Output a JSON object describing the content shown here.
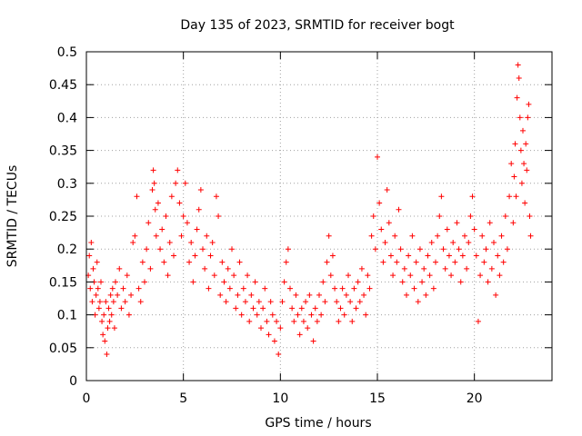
{
  "chart_data": {
    "type": "scatter",
    "title": "Day 135 of 2023, SRMTID for receiver bogt",
    "xlabel": "GPS time / hours",
    "ylabel": "SRMTID / TECUs",
    "xlim": [
      0,
      24
    ],
    "ylim": [
      0,
      0.5
    ],
    "xticks": [
      0,
      5,
      10,
      15,
      20
    ],
    "yticks": [
      0,
      0.05,
      0.1,
      0.15,
      0.2,
      0.25,
      0.3,
      0.35,
      0.4,
      0.45,
      0.5
    ],
    "grid": true,
    "marker": "+",
    "series_color": "#ff0000",
    "series": [
      {
        "name": "SRMTID",
        "points": [
          [
            0.1,
            0.16
          ],
          [
            0.15,
            0.19
          ],
          [
            0.2,
            0.14
          ],
          [
            0.25,
            0.21
          ],
          [
            0.3,
            0.12
          ],
          [
            0.35,
            0.17
          ],
          [
            0.4,
            0.15
          ],
          [
            0.45,
            0.1
          ],
          [
            0.5,
            0.13
          ],
          [
            0.55,
            0.18
          ],
          [
            0.6,
            0.14
          ],
          [
            0.65,
            0.11
          ],
          [
            0.7,
            0.12
          ],
          [
            0.75,
            0.15
          ],
          [
            0.8,
            0.09
          ],
          [
            0.85,
            0.07
          ],
          [
            0.9,
            0.1
          ],
          [
            0.95,
            0.06
          ],
          [
            1.0,
            0.12
          ],
          [
            1.05,
            0.04
          ],
          [
            1.1,
            0.08
          ],
          [
            1.15,
            0.11
          ],
          [
            1.2,
            0.09
          ],
          [
            1.25,
            0.13
          ],
          [
            1.3,
            0.1
          ],
          [
            1.35,
            0.14
          ],
          [
            1.4,
            0.12
          ],
          [
            1.45,
            0.08
          ],
          [
            1.5,
            0.15
          ],
          [
            1.6,
            0.13
          ],
          [
            1.7,
            0.17
          ],
          [
            1.8,
            0.11
          ],
          [
            1.9,
            0.14
          ],
          [
            2.0,
            0.12
          ],
          [
            2.1,
            0.16
          ],
          [
            2.2,
            0.1
          ],
          [
            2.3,
            0.13
          ],
          [
            2.4,
            0.21
          ],
          [
            2.5,
            0.22
          ],
          [
            2.6,
            0.28
          ],
          [
            2.7,
            0.14
          ],
          [
            2.8,
            0.12
          ],
          [
            2.9,
            0.18
          ],
          [
            3.0,
            0.15
          ],
          [
            3.1,
            0.2
          ],
          [
            3.2,
            0.24
          ],
          [
            3.3,
            0.17
          ],
          [
            3.4,
            0.29
          ],
          [
            3.45,
            0.32
          ],
          [
            3.5,
            0.3
          ],
          [
            3.55,
            0.26
          ],
          [
            3.6,
            0.22
          ],
          [
            3.7,
            0.27
          ],
          [
            3.8,
            0.2
          ],
          [
            3.9,
            0.23
          ],
          [
            4.0,
            0.18
          ],
          [
            4.1,
            0.25
          ],
          [
            4.2,
            0.16
          ],
          [
            4.3,
            0.21
          ],
          [
            4.4,
            0.28
          ],
          [
            4.5,
            0.19
          ],
          [
            4.6,
            0.3
          ],
          [
            4.7,
            0.32
          ],
          [
            4.8,
            0.27
          ],
          [
            4.9,
            0.22
          ],
          [
            5.0,
            0.25
          ],
          [
            5.1,
            0.3
          ],
          [
            5.2,
            0.24
          ],
          [
            5.3,
            0.18
          ],
          [
            5.4,
            0.21
          ],
          [
            5.5,
            0.15
          ],
          [
            5.6,
            0.19
          ],
          [
            5.7,
            0.23
          ],
          [
            5.8,
            0.26
          ],
          [
            5.9,
            0.29
          ],
          [
            6.0,
            0.2
          ],
          [
            6.1,
            0.17
          ],
          [
            6.2,
            0.22
          ],
          [
            6.3,
            0.14
          ],
          [
            6.4,
            0.19
          ],
          [
            6.5,
            0.21
          ],
          [
            6.6,
            0.16
          ],
          [
            6.7,
            0.28
          ],
          [
            6.8,
            0.25
          ],
          [
            6.9,
            0.13
          ],
          [
            7.0,
            0.18
          ],
          [
            7.1,
            0.15
          ],
          [
            7.2,
            0.12
          ],
          [
            7.3,
            0.17
          ],
          [
            7.4,
            0.14
          ],
          [
            7.5,
            0.2
          ],
          [
            7.6,
            0.16
          ],
          [
            7.7,
            0.11
          ],
          [
            7.8,
            0.13
          ],
          [
            7.9,
            0.18
          ],
          [
            8.0,
            0.1
          ],
          [
            8.1,
            0.14
          ],
          [
            8.2,
            0.12
          ],
          [
            8.3,
            0.16
          ],
          [
            8.4,
            0.09
          ],
          [
            8.5,
            0.13
          ],
          [
            8.6,
            0.11
          ],
          [
            8.7,
            0.15
          ],
          [
            8.8,
            0.1
          ],
          [
            8.9,
            0.12
          ],
          [
            9.0,
            0.08
          ],
          [
            9.1,
            0.11
          ],
          [
            9.2,
            0.14
          ],
          [
            9.3,
            0.09
          ],
          [
            9.4,
            0.07
          ],
          [
            9.5,
            0.12
          ],
          [
            9.6,
            0.1
          ],
          [
            9.7,
            0.06
          ],
          [
            9.8,
            0.09
          ],
          [
            9.9,
            0.04
          ],
          [
            10.0,
            0.08
          ],
          [
            10.1,
            0.12
          ],
          [
            10.2,
            0.15
          ],
          [
            10.3,
            0.18
          ],
          [
            10.4,
            0.2
          ],
          [
            10.5,
            0.14
          ],
          [
            10.6,
            0.11
          ],
          [
            10.7,
            0.09
          ],
          [
            10.8,
            0.13
          ],
          [
            10.9,
            0.1
          ],
          [
            11.0,
            0.07
          ],
          [
            11.1,
            0.11
          ],
          [
            11.2,
            0.09
          ],
          [
            11.3,
            0.12
          ],
          [
            11.4,
            0.08
          ],
          [
            11.5,
            0.13
          ],
          [
            11.6,
            0.1
          ],
          [
            11.7,
            0.06
          ],
          [
            11.8,
            0.11
          ],
          [
            11.9,
            0.09
          ],
          [
            12.0,
            0.13
          ],
          [
            12.1,
            0.1
          ],
          [
            12.2,
            0.15
          ],
          [
            12.3,
            0.12
          ],
          [
            12.4,
            0.18
          ],
          [
            12.5,
            0.22
          ],
          [
            12.6,
            0.16
          ],
          [
            12.7,
            0.19
          ],
          [
            12.8,
            0.14
          ],
          [
            12.9,
            0.12
          ],
          [
            13.0,
            0.09
          ],
          [
            13.1,
            0.11
          ],
          [
            13.2,
            0.14
          ],
          [
            13.3,
            0.1
          ],
          [
            13.4,
            0.13
          ],
          [
            13.5,
            0.16
          ],
          [
            13.6,
            0.12
          ],
          [
            13.7,
            0.09
          ],
          [
            13.8,
            0.14
          ],
          [
            13.9,
            0.11
          ],
          [
            14.0,
            0.15
          ],
          [
            14.1,
            0.12
          ],
          [
            14.2,
            0.17
          ],
          [
            14.3,
            0.13
          ],
          [
            14.4,
            0.1
          ],
          [
            14.5,
            0.16
          ],
          [
            14.6,
            0.14
          ],
          [
            14.7,
            0.22
          ],
          [
            14.8,
            0.25
          ],
          [
            14.9,
            0.2
          ],
          [
            15.0,
            0.34
          ],
          [
            15.1,
            0.27
          ],
          [
            15.2,
            0.23
          ],
          [
            15.3,
            0.18
          ],
          [
            15.4,
            0.21
          ],
          [
            15.5,
            0.29
          ],
          [
            15.6,
            0.24
          ],
          [
            15.7,
            0.19
          ],
          [
            15.8,
            0.16
          ],
          [
            15.9,
            0.22
          ],
          [
            16.0,
            0.18
          ],
          [
            16.1,
            0.26
          ],
          [
            16.2,
            0.2
          ],
          [
            16.3,
            0.15
          ],
          [
            16.4,
            0.17
          ],
          [
            16.5,
            0.13
          ],
          [
            16.6,
            0.19
          ],
          [
            16.7,
            0.16
          ],
          [
            16.8,
            0.22
          ],
          [
            16.9,
            0.14
          ],
          [
            17.0,
            0.18
          ],
          [
            17.1,
            0.12
          ],
          [
            17.2,
            0.2
          ],
          [
            17.3,
            0.15
          ],
          [
            17.4,
            0.17
          ],
          [
            17.5,
            0.13
          ],
          [
            17.6,
            0.19
          ],
          [
            17.7,
            0.16
          ],
          [
            17.8,
            0.21
          ],
          [
            17.9,
            0.14
          ],
          [
            18.0,
            0.18
          ],
          [
            18.1,
            0.22
          ],
          [
            18.2,
            0.25
          ],
          [
            18.3,
            0.28
          ],
          [
            18.4,
            0.2
          ],
          [
            18.5,
            0.17
          ],
          [
            18.6,
            0.23
          ],
          [
            18.7,
            0.19
          ],
          [
            18.8,
            0.16
          ],
          [
            18.9,
            0.21
          ],
          [
            19.0,
            0.18
          ],
          [
            19.1,
            0.24
          ],
          [
            19.2,
            0.2
          ],
          [
            19.3,
            0.15
          ],
          [
            19.4,
            0.19
          ],
          [
            19.5,
            0.22
          ],
          [
            19.6,
            0.17
          ],
          [
            19.7,
            0.21
          ],
          [
            19.8,
            0.25
          ],
          [
            19.9,
            0.28
          ],
          [
            20.0,
            0.23
          ],
          [
            20.1,
            0.19
          ],
          [
            20.2,
            0.09
          ],
          [
            20.3,
            0.16
          ],
          [
            20.4,
            0.22
          ],
          [
            20.5,
            0.18
          ],
          [
            20.6,
            0.2
          ],
          [
            20.7,
            0.15
          ],
          [
            20.8,
            0.24
          ],
          [
            20.9,
            0.17
          ],
          [
            21.0,
            0.21
          ],
          [
            21.1,
            0.13
          ],
          [
            21.2,
            0.19
          ],
          [
            21.3,
            0.16
          ],
          [
            21.4,
            0.22
          ],
          [
            21.5,
            0.18
          ],
          [
            21.6,
            0.25
          ],
          [
            21.7,
            0.2
          ],
          [
            21.8,
            0.28
          ],
          [
            21.9,
            0.33
          ],
          [
            22.0,
            0.24
          ],
          [
            22.05,
            0.31
          ],
          [
            22.1,
            0.36
          ],
          [
            22.15,
            0.28
          ],
          [
            22.2,
            0.43
          ],
          [
            22.25,
            0.48
          ],
          [
            22.3,
            0.46
          ],
          [
            22.35,
            0.4
          ],
          [
            22.4,
            0.35
          ],
          [
            22.45,
            0.3
          ],
          [
            22.5,
            0.38
          ],
          [
            22.55,
            0.33
          ],
          [
            22.6,
            0.27
          ],
          [
            22.65,
            0.36
          ],
          [
            22.7,
            0.32
          ],
          [
            22.75,
            0.4
          ],
          [
            22.8,
            0.42
          ],
          [
            22.85,
            0.25
          ],
          [
            22.9,
            0.22
          ]
        ]
      }
    ]
  }
}
